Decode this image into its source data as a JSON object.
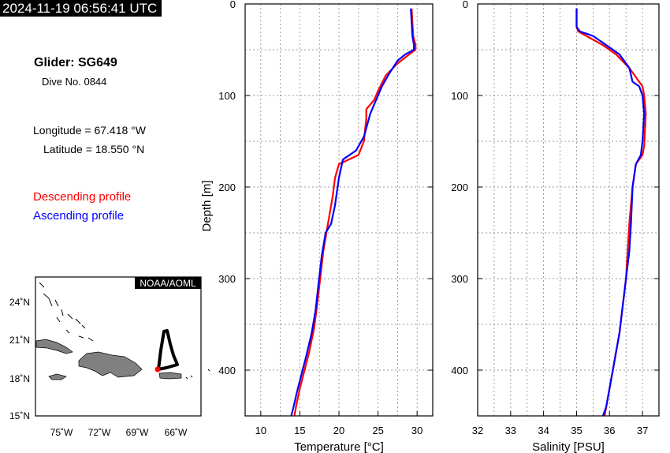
{
  "timestamp": "2024-11-19 06:56:41 UTC",
  "glider": {
    "name": "Glider: SG649",
    "dive": "Dive No. 0844"
  },
  "position": {
    "longitude": "Longitude = 67.418 °W",
    "latitude": "Latitude = 18.550 °N"
  },
  "legend": {
    "descending": "Descending profile",
    "ascending": "Ascending profile"
  },
  "colors": {
    "descending": "#ff0000",
    "ascending": "#0000ff",
    "track": "#000000",
    "land": "#808080"
  },
  "map": {
    "credit": "NOAA/AOML",
    "lat_ticks": [
      "24˚N",
      "21˚N",
      "18˚N",
      "15˚N"
    ],
    "lon_ticks": [
      "75˚W",
      "72˚W",
      "69˚W",
      "66˚W"
    ],
    "glider_position": {
      "lon": -67.418,
      "lat": 18.55
    }
  },
  "chart_data": [
    {
      "type": "line",
      "xlabel": "Temperature [°C]",
      "ylabel": "Depth [m]",
      "xlim": [
        8,
        32
      ],
      "ylim": [
        450,
        0
      ],
      "x_ticks": [
        "10",
        "15",
        "20",
        "25",
        "30"
      ],
      "y_ticks": [
        "0",
        "100",
        "200",
        "300",
        "400"
      ],
      "grid": true,
      "series": [
        {
          "name": "Descending profile",
          "color": "#ff0000",
          "x": [
            29.3,
            29.4,
            29.5,
            29.8,
            29.8,
            29.0,
            27.5,
            26.0,
            25.0,
            24.5,
            23.5,
            23.5,
            23.2,
            22.5,
            20.0,
            19.5,
            19.2,
            18.8,
            18.4,
            18.0,
            17.6,
            17.2,
            16.8,
            16.2,
            15.6,
            15.0,
            14.5,
            14.3
          ],
          "y": [
            5,
            20,
            35,
            45,
            50,
            55,
            65,
            78,
            95,
            105,
            115,
            125,
            150,
            165,
            175,
            190,
            210,
            230,
            250,
            270,
            300,
            330,
            355,
            380,
            400,
            420,
            440,
            450
          ]
        },
        {
          "name": "Ascending profile",
          "color": "#0000ff",
          "x": [
            29.2,
            29.3,
            29.4,
            29.6,
            29.6,
            28.5,
            27.5,
            26.5,
            25.5,
            25.0,
            24.5,
            24.0,
            23.2,
            22.2,
            20.5,
            20.0,
            19.5,
            19.0,
            18.3,
            17.8,
            17.4,
            17.0,
            16.5,
            15.8,
            15.2,
            14.6,
            14.2,
            13.9
          ],
          "y": [
            5,
            20,
            35,
            45,
            50,
            55,
            62,
            75,
            90,
            100,
            110,
            120,
            145,
            160,
            170,
            190,
            220,
            240,
            250,
            275,
            305,
            335,
            360,
            385,
            405,
            425,
            440,
            450
          ]
        }
      ]
    },
    {
      "type": "line",
      "xlabel": "Salinity [PSU]",
      "ylabel": "",
      "xlim": [
        32,
        37.5
      ],
      "ylim": [
        450,
        0
      ],
      "x_ticks": [
        "32",
        "33",
        "34",
        "35",
        "36",
        "37"
      ],
      "y_ticks": [
        "0",
        "100",
        "200",
        "300",
        "400"
      ],
      "grid": true,
      "series": [
        {
          "name": "Descending profile",
          "color": "#ff0000",
          "x": [
            35.0,
            35.0,
            35.05,
            35.3,
            35.8,
            36.2,
            36.6,
            36.9,
            37.0,
            37.05,
            37.1,
            37.05,
            37.0,
            36.8,
            36.7,
            36.6,
            36.55,
            36.5,
            36.4,
            36.3,
            36.2,
            36.1,
            36.0,
            35.9,
            35.85
          ],
          "y": [
            5,
            25,
            30,
            35,
            45,
            55,
            70,
            85,
            90,
            100,
            120,
            155,
            165,
            175,
            200,
            240,
            270,
            300,
            330,
            360,
            380,
            400,
            420,
            440,
            450
          ]
        },
        {
          "name": "Ascending profile",
          "color": "#0000ff",
          "x": [
            35.0,
            35.0,
            35.1,
            35.5,
            35.9,
            36.3,
            36.6,
            36.7,
            36.9,
            37.0,
            37.05,
            37.0,
            36.95,
            36.8,
            36.7,
            36.65,
            36.6,
            36.5,
            36.4,
            36.3,
            36.2,
            36.1,
            36.0,
            35.9,
            35.8
          ],
          "y": [
            5,
            25,
            30,
            35,
            45,
            55,
            70,
            85,
            90,
            100,
            120,
            150,
            165,
            175,
            200,
            240,
            270,
            300,
            330,
            360,
            380,
            400,
            420,
            440,
            450
          ]
        }
      ]
    }
  ]
}
